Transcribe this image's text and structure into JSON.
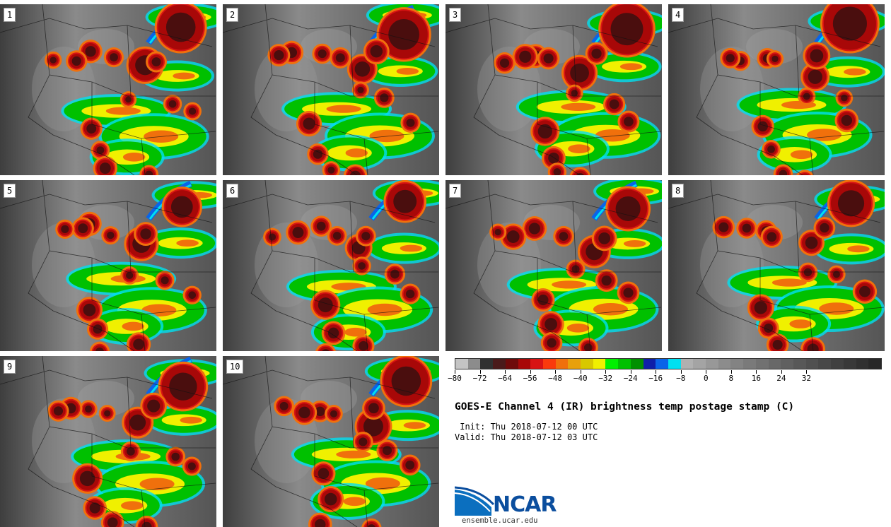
{
  "panels": [
    {
      "label": "1"
    },
    {
      "label": "2"
    },
    {
      "label": "3"
    },
    {
      "label": "4"
    },
    {
      "label": "5"
    },
    {
      "label": "6"
    },
    {
      "label": "7"
    },
    {
      "label": "8"
    },
    {
      "label": "9"
    },
    {
      "label": "10"
    }
  ],
  "colorbar": {
    "colors": [
      "#c4c4c4",
      "#8c8c8c",
      "#303030",
      "#4a1a1a",
      "#6e0a0a",
      "#a80808",
      "#d81414",
      "#fa3a0c",
      "#f0700c",
      "#e8a00c",
      "#d8c800",
      "#f0f000",
      "#00f000",
      "#00c000",
      "#009000",
      "#0f1fa8",
      "#0a64e8",
      "#00e0f0",
      "#b0b0b0",
      "#a4a4a4",
      "#989898",
      "#8c8c8c",
      "#838383",
      "#7a7a7a",
      "#717171",
      "#686868",
      "#606060",
      "#585858",
      "#505050",
      "#484848",
      "#404040",
      "#383838",
      "#303030",
      "#282828"
    ],
    "ticks": [
      "−80",
      "−72",
      "−64",
      "−56",
      "−48",
      "−40",
      "−32",
      "−24",
      "−16",
      "−8",
      "0",
      "8",
      "16",
      "24",
      "32"
    ]
  },
  "title": "GOES-E Channel 4 (IR) brightness temp postage stamp (C)",
  "init": " Init: Thu 2018-07-12 00 UTC",
  "valid": "Valid: Thu 2018-07-12 03 UTC",
  "logo": {
    "text": "NCAR",
    "url": "ensemble.ucar.edu",
    "color": "#0b4e9e"
  },
  "palette": {
    "deep": "#4a0e0e",
    "red": "#a80808",
    "orange": "#f0700c",
    "yellow": "#f0f000",
    "green": "#00c000",
    "blue": "#0a64e8",
    "cyan": "#00e0f0",
    "gray": "#6b6b6b"
  }
}
